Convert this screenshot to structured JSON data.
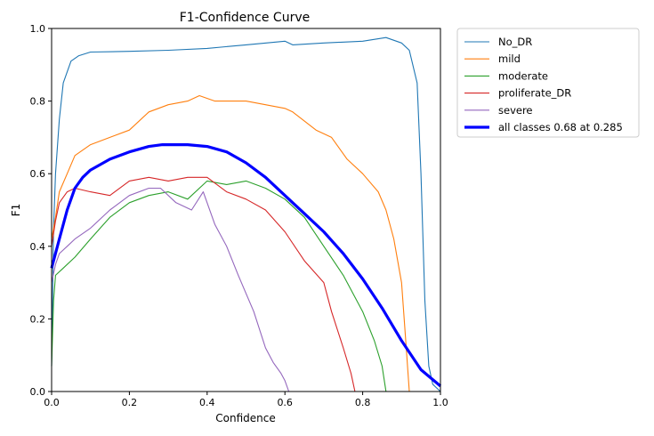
{
  "chart_data": {
    "type": "line",
    "title": "F1-Confidence Curve",
    "xlabel": "Confidence",
    "ylabel": "F1",
    "xlim": [
      0,
      1
    ],
    "ylim": [
      0,
      1
    ],
    "xticks": [
      "0.0",
      "0.2",
      "0.4",
      "0.6",
      "0.8",
      "1.0"
    ],
    "yticks": [
      "0.0",
      "0.2",
      "0.4",
      "0.6",
      "0.8",
      "1.0"
    ],
    "grid": false,
    "legend_position": "outside-top-right",
    "series": [
      {
        "name": "No_DR",
        "color": "#1f77b4",
        "line": "thin",
        "x": [
          0,
          0.005,
          0.01,
          0.02,
          0.03,
          0.05,
          0.07,
          0.1,
          0.2,
          0.3,
          0.4,
          0.5,
          0.6,
          0.62,
          0.7,
          0.8,
          0.86,
          0.9,
          0.92,
          0.94,
          0.95,
          0.96,
          0.97,
          0.98,
          0.99,
          1.0
        ],
        "y": [
          0.07,
          0.45,
          0.6,
          0.75,
          0.85,
          0.91,
          0.925,
          0.935,
          0.937,
          0.94,
          0.945,
          0.955,
          0.965,
          0.955,
          0.96,
          0.965,
          0.975,
          0.96,
          0.94,
          0.85,
          0.6,
          0.25,
          0.07,
          0.02,
          0.01,
          0.0
        ]
      },
      {
        "name": "mild",
        "color": "#ff7f0e",
        "line": "thin",
        "x": [
          0,
          0.01,
          0.02,
          0.04,
          0.06,
          0.1,
          0.15,
          0.2,
          0.25,
          0.3,
          0.35,
          0.38,
          0.42,
          0.5,
          0.55,
          0.6,
          0.62,
          0.68,
          0.72,
          0.76,
          0.8,
          0.84,
          0.86,
          0.88,
          0.9,
          0.91,
          0.92
        ],
        "y": [
          0.42,
          0.48,
          0.55,
          0.6,
          0.65,
          0.68,
          0.7,
          0.72,
          0.77,
          0.79,
          0.8,
          0.815,
          0.8,
          0.8,
          0.79,
          0.78,
          0.77,
          0.72,
          0.7,
          0.64,
          0.6,
          0.55,
          0.5,
          0.42,
          0.3,
          0.15,
          0.0
        ]
      },
      {
        "name": "moderate",
        "color": "#2ca02c",
        "line": "thin",
        "x": [
          0,
          0.005,
          0.01,
          0.03,
          0.06,
          0.1,
          0.15,
          0.2,
          0.25,
          0.3,
          0.35,
          0.4,
          0.45,
          0.5,
          0.55,
          0.6,
          0.65,
          0.7,
          0.75,
          0.8,
          0.83,
          0.85,
          0.86
        ],
        "y": [
          0.07,
          0.25,
          0.32,
          0.34,
          0.37,
          0.42,
          0.48,
          0.52,
          0.54,
          0.55,
          0.53,
          0.58,
          0.57,
          0.58,
          0.56,
          0.53,
          0.48,
          0.4,
          0.32,
          0.22,
          0.14,
          0.07,
          0.0
        ]
      },
      {
        "name": "proliferate_DR",
        "color": "#d62728",
        "line": "thin",
        "x": [
          0,
          0.01,
          0.02,
          0.04,
          0.06,
          0.1,
          0.15,
          0.2,
          0.25,
          0.3,
          0.35,
          0.4,
          0.45,
          0.5,
          0.55,
          0.6,
          0.65,
          0.7,
          0.72,
          0.75,
          0.77,
          0.78
        ],
        "y": [
          0.4,
          0.47,
          0.52,
          0.55,
          0.56,
          0.55,
          0.54,
          0.58,
          0.59,
          0.58,
          0.59,
          0.59,
          0.55,
          0.53,
          0.5,
          0.44,
          0.36,
          0.3,
          0.22,
          0.12,
          0.05,
          0.0
        ]
      },
      {
        "name": "severe",
        "color": "#9467bd",
        "line": "thin",
        "x": [
          0,
          0.01,
          0.02,
          0.04,
          0.06,
          0.1,
          0.15,
          0.2,
          0.25,
          0.28,
          0.32,
          0.36,
          0.39,
          0.42,
          0.45,
          0.48,
          0.52,
          0.55,
          0.57,
          0.59,
          0.6,
          0.61
        ],
        "y": [
          0.3,
          0.35,
          0.38,
          0.4,
          0.42,
          0.45,
          0.5,
          0.54,
          0.56,
          0.56,
          0.52,
          0.5,
          0.55,
          0.46,
          0.4,
          0.32,
          0.22,
          0.12,
          0.08,
          0.05,
          0.03,
          0.0
        ]
      },
      {
        "name": "all classes 0.68 at 0.285",
        "color": "#0000ff",
        "line": "thick",
        "x": [
          0,
          0.02,
          0.04,
          0.06,
          0.08,
          0.1,
          0.15,
          0.2,
          0.25,
          0.285,
          0.3,
          0.35,
          0.4,
          0.45,
          0.5,
          0.55,
          0.6,
          0.65,
          0.7,
          0.75,
          0.8,
          0.85,
          0.9,
          0.95,
          1.0
        ],
        "y": [
          0.34,
          0.42,
          0.5,
          0.56,
          0.59,
          0.61,
          0.64,
          0.66,
          0.675,
          0.68,
          0.68,
          0.68,
          0.675,
          0.66,
          0.63,
          0.59,
          0.54,
          0.49,
          0.44,
          0.38,
          0.31,
          0.23,
          0.14,
          0.06,
          0.015
        ]
      }
    ]
  }
}
